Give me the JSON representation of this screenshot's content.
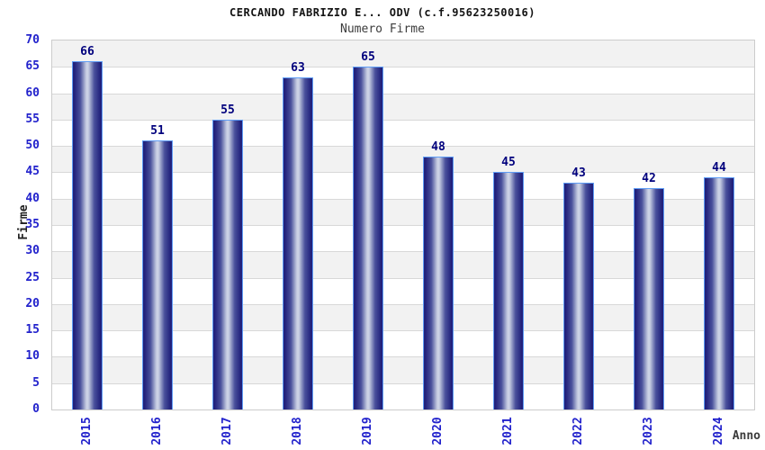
{
  "header": {
    "title": "CERCANDO FABRIZIO E... ODV (c.f.95623250016)",
    "subtitle": "Numero Firme"
  },
  "axes": {
    "ylabel": "Firme",
    "xlabel": "Anno"
  },
  "chart_data": {
    "type": "bar",
    "title": "CERCANDO FABRIZIO E... ODV (c.f.95623250016)",
    "subtitle": "Numero Firme",
    "categories": [
      "2015",
      "2016",
      "2017",
      "2018",
      "2019",
      "2020",
      "2021",
      "2022",
      "2023",
      "2024"
    ],
    "values": [
      66,
      51,
      55,
      63,
      65,
      48,
      45,
      43,
      42,
      44
    ],
    "xlabel": "Anno",
    "ylabel": "Firme",
    "ylim": [
      0,
      70
    ],
    "ytick_step": 5,
    "yticks": [
      0,
      5,
      10,
      15,
      20,
      25,
      30,
      35,
      40,
      45,
      50,
      55,
      60,
      65,
      70
    ],
    "grid": true,
    "legend_position": "none",
    "colors": {
      "tick_label": "#2222cc",
      "value_label": "#00007d",
      "bar_edge": "#22227c",
      "bar_mid": "#4a519c",
      "bar_center": "#bfc6de",
      "bar_highlight": "#d0d6e8",
      "bar_border": "#5e9cf5",
      "band_gray": "#f2f2f2",
      "band_white": "#ffffff",
      "grid_line": "#d8d8d8",
      "plot_border": "#cccccc"
    }
  }
}
